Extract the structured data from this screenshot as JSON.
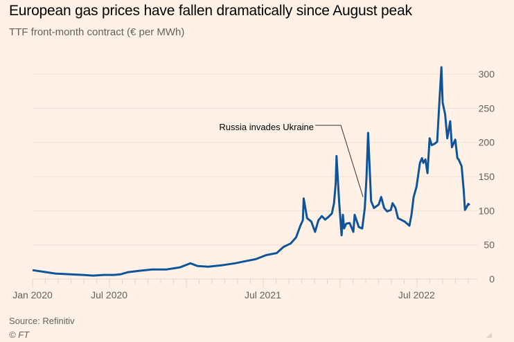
{
  "chart_data": {
    "type": "line",
    "title": "European gas prices have fallen dramatically since August peak",
    "subtitle": "TTF front-month contract (€ per MWh)",
    "xlabel": "",
    "ylabel": "",
    "ylim": [
      0,
      300
    ],
    "xlim": [
      "2020-01-01",
      "2022-11-10"
    ],
    "yticks": [
      0,
      50,
      100,
      150,
      200,
      250,
      300
    ],
    "xticks": [
      {
        "date": "2020-01-01",
        "label": "Jan 2020"
      },
      {
        "date": "2020-07-01",
        "label": "Jul 2020"
      },
      {
        "date": "2021-07-01",
        "label": "Jul 2021"
      },
      {
        "date": "2022-07-01",
        "label": "Jul 2022"
      }
    ],
    "grid": true,
    "axis_side": "right",
    "colors": {
      "line": "#0f5499",
      "background": "#fff1e5",
      "grid": "#f2dfce",
      "text": "#66605c"
    },
    "annotations": [
      {
        "text": "Russia invades Ukraine",
        "date": "2022-02-24",
        "value": 120
      }
    ],
    "series": [
      {
        "name": "TTF front-month",
        "points": [
          [
            "2020-01-01",
            13
          ],
          [
            "2020-01-22",
            11
          ],
          [
            "2020-02-24",
            8
          ],
          [
            "2020-03-27",
            7
          ],
          [
            "2020-04-29",
            6
          ],
          [
            "2020-05-24",
            5
          ],
          [
            "2020-06-18",
            6
          ],
          [
            "2020-07-12",
            6
          ],
          [
            "2020-07-29",
            7
          ],
          [
            "2020-08-15",
            10
          ],
          [
            "2020-09-09",
            12
          ],
          [
            "2020-10-11",
            14
          ],
          [
            "2020-11-14",
            14
          ],
          [
            "2020-12-16",
            17
          ],
          [
            "2021-01-10",
            23
          ],
          [
            "2021-01-27",
            19
          ],
          [
            "2021-02-21",
            18
          ],
          [
            "2021-03-24",
            20
          ],
          [
            "2021-04-26",
            23
          ],
          [
            "2021-05-20",
            26
          ],
          [
            "2021-06-14",
            29
          ],
          [
            "2021-07-09",
            35
          ],
          [
            "2021-08-03",
            38
          ],
          [
            "2021-08-19",
            47
          ],
          [
            "2021-09-05",
            52
          ],
          [
            "2021-09-18",
            61
          ],
          [
            "2021-09-28",
            78
          ],
          [
            "2021-10-04",
            86
          ],
          [
            "2021-10-06",
            118
          ],
          [
            "2021-10-14",
            89
          ],
          [
            "2021-10-24",
            84
          ],
          [
            "2021-11-02",
            69
          ],
          [
            "2021-11-10",
            86
          ],
          [
            "2021-11-18",
            92
          ],
          [
            "2021-11-26",
            87
          ],
          [
            "2021-12-04",
            91
          ],
          [
            "2021-12-12",
            96
          ],
          [
            "2021-12-17",
            111
          ],
          [
            "2021-12-21",
            140
          ],
          [
            "2021-12-23",
            180
          ],
          [
            "2021-12-29",
            114
          ],
          [
            "2022-01-04",
            64
          ],
          [
            "2022-01-07",
            94
          ],
          [
            "2022-01-10",
            74
          ],
          [
            "2022-01-15",
            81
          ],
          [
            "2022-01-23",
            82
          ],
          [
            "2022-02-01",
            69
          ],
          [
            "2022-02-04",
            94
          ],
          [
            "2022-02-14",
            76
          ],
          [
            "2022-02-22",
            74
          ],
          [
            "2022-02-28",
            104
          ],
          [
            "2022-03-04",
            147
          ],
          [
            "2022-03-08",
            214
          ],
          [
            "2022-03-11",
            173
          ],
          [
            "2022-03-15",
            114
          ],
          [
            "2022-03-22",
            104
          ],
          [
            "2022-04-02",
            109
          ],
          [
            "2022-04-08",
            120
          ],
          [
            "2022-04-15",
            104
          ],
          [
            "2022-04-22",
            99
          ],
          [
            "2022-05-01",
            101
          ],
          [
            "2022-05-05",
            111
          ],
          [
            "2022-05-12",
            104
          ],
          [
            "2022-05-18",
            89
          ],
          [
            "2022-06-03",
            84
          ],
          [
            "2022-06-14",
            78
          ],
          [
            "2022-06-19",
            94
          ],
          [
            "2022-06-24",
            120
          ],
          [
            "2022-07-01",
            135
          ],
          [
            "2022-07-09",
            170
          ],
          [
            "2022-07-14",
            177
          ],
          [
            "2022-07-17",
            170
          ],
          [
            "2022-07-22",
            175
          ],
          [
            "2022-07-27",
            155
          ],
          [
            "2022-08-01",
            206
          ],
          [
            "2022-08-06",
            196
          ],
          [
            "2022-08-13",
            198
          ],
          [
            "2022-08-19",
            201
          ],
          [
            "2022-08-24",
            256
          ],
          [
            "2022-08-29",
            310
          ],
          [
            "2022-09-01",
            258
          ],
          [
            "2022-09-07",
            241
          ],
          [
            "2022-09-12",
            206
          ],
          [
            "2022-09-19",
            231
          ],
          [
            "2022-09-23",
            193
          ],
          [
            "2022-10-01",
            204
          ],
          [
            "2022-10-06",
            177
          ],
          [
            "2022-10-09",
            175
          ],
          [
            "2022-10-16",
            165
          ],
          [
            "2022-10-21",
            130
          ],
          [
            "2022-10-24",
            101
          ],
          [
            "2022-11-01",
            110
          ],
          [
            "2022-11-04",
            108
          ]
        ]
      }
    ]
  },
  "footer": {
    "source": "Source: Refinitiv",
    "copyright": "© FT"
  }
}
